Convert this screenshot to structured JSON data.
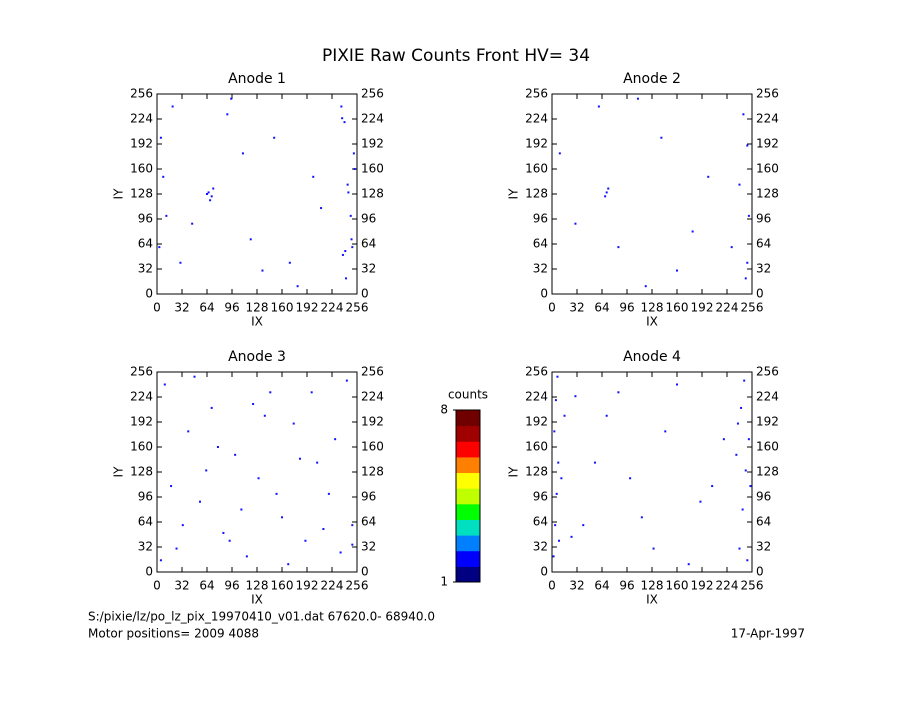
{
  "title": "PIXIE Raw Counts Front HV= 34",
  "footer": {
    "file": "S:/pixie/lz/po_lz_pix_19970410_v01.dat    67620.0- 68940.0",
    "motor": "Motor positions= 2009 4088",
    "date": "17-Apr-1997"
  },
  "chart_data": [
    {
      "type": "scatter",
      "title": "Anode 1",
      "xlabel": "IX",
      "ylabel": "IY",
      "color": "#1010ff",
      "xlim": [
        0,
        256
      ],
      "ylim": [
        0,
        256
      ],
      "xticks": [
        0,
        32,
        64,
        96,
        128,
        160,
        192,
        224,
        256
      ],
      "yticks": [
        0,
        32,
        64,
        96,
        128,
        160,
        192,
        224,
        256
      ],
      "x": [
        5,
        8,
        3,
        12,
        66,
        70,
        72,
        68,
        64,
        240,
        245,
        250,
        238,
        252,
        248,
        242,
        236,
        30,
        90,
        120,
        150,
        180,
        200,
        110,
        45,
        170,
        210,
        95,
        135,
        20,
        244,
        249,
        237,
        253,
        241
      ],
      "y": [
        200,
        150,
        60,
        100,
        130,
        125,
        135,
        120,
        128,
        220,
        130,
        60,
        50,
        180,
        100,
        20,
        240,
        40,
        230,
        70,
        200,
        10,
        150,
        180,
        90,
        40,
        110,
        250,
        30,
        240,
        140,
        70,
        225,
        160,
        55
      ]
    },
    {
      "type": "scatter",
      "title": "Anode 2",
      "xlabel": "IX",
      "ylabel": "IY",
      "color": "#1010ff",
      "xlim": [
        0,
        256
      ],
      "ylim": [
        0,
        256
      ],
      "xticks": [
        0,
        32,
        64,
        96,
        128,
        160,
        192,
        224,
        256
      ],
      "yticks": [
        0,
        32,
        64,
        96,
        128,
        160,
        192,
        224,
        256
      ],
      "x": [
        70,
        68,
        72,
        245,
        250,
        240,
        252,
        248,
        85,
        140,
        160,
        200,
        30,
        110,
        60,
        180,
        10,
        250,
        120,
        230
      ],
      "y": [
        130,
        125,
        135,
        230,
        40,
        140,
        100,
        20,
        60,
        200,
        30,
        150,
        90,
        250,
        240,
        80,
        180,
        190,
        10,
        60
      ]
    },
    {
      "type": "scatter",
      "title": "Anode 3",
      "xlabel": "IX",
      "ylabel": "IY",
      "color": "#1010ff",
      "xlim": [
        0,
        256
      ],
      "ylim": [
        0,
        256
      ],
      "xticks": [
        0,
        32,
        64,
        96,
        128,
        160,
        192,
        224,
        256
      ],
      "yticks": [
        0,
        32,
        64,
        96,
        128,
        160,
        192,
        224,
        256
      ],
      "x": [
        10,
        25,
        40,
        55,
        70,
        85,
        100,
        115,
        130,
        145,
        160,
        175,
        190,
        205,
        220,
        235,
        250,
        18,
        48,
        78,
        108,
        138,
        168,
        198,
        228,
        33,
        63,
        93,
        123,
        153,
        183,
        213,
        243,
        5,
        250
      ],
      "y": [
        240,
        30,
        180,
        90,
        210,
        50,
        150,
        20,
        120,
        230,
        70,
        190,
        40,
        140,
        100,
        25,
        60,
        110,
        250,
        160,
        80,
        200,
        10,
        230,
        170,
        60,
        130,
        40,
        215,
        100,
        145,
        55,
        245,
        15,
        35
      ]
    },
    {
      "type": "scatter",
      "title": "Anode 4",
      "xlabel": "IX",
      "ylabel": "IY",
      "color": "#1010ff",
      "xlim": [
        0,
        256
      ],
      "ylim": [
        0,
        256
      ],
      "xticks": [
        0,
        32,
        64,
        96,
        128,
        160,
        192,
        224,
        256
      ],
      "yticks": [
        0,
        32,
        64,
        96,
        128,
        160,
        192,
        224,
        256
      ],
      "x": [
        2,
        4,
        6,
        8,
        3,
        5,
        7,
        9,
        12,
        16,
        240,
        244,
        248,
        252,
        242,
        246,
        250,
        254,
        238,
        236,
        40,
        70,
        100,
        130,
        160,
        190,
        220,
        55,
        85,
        115,
        145,
        175,
        205,
        25,
        30
      ],
      "y": [
        20,
        60,
        100,
        140,
        180,
        220,
        250,
        40,
        120,
        200,
        30,
        80,
        130,
        170,
        210,
        245,
        15,
        110,
        190,
        150,
        60,
        200,
        120,
        30,
        240,
        90,
        170,
        140,
        230,
        70,
        180,
        10,
        110,
        45,
        225
      ]
    },
    {
      "type": "colorbar",
      "label": "counts",
      "ylim": [
        1,
        8
      ],
      "yticks": [
        1,
        8
      ],
      "colors": [
        "#000080",
        "#0000ff",
        "#0080ff",
        "#00e0c0",
        "#00ff00",
        "#c0ff00",
        "#ffff00",
        "#ff8000",
        "#ff0000",
        "#a00000",
        "#700000"
      ]
    }
  ]
}
